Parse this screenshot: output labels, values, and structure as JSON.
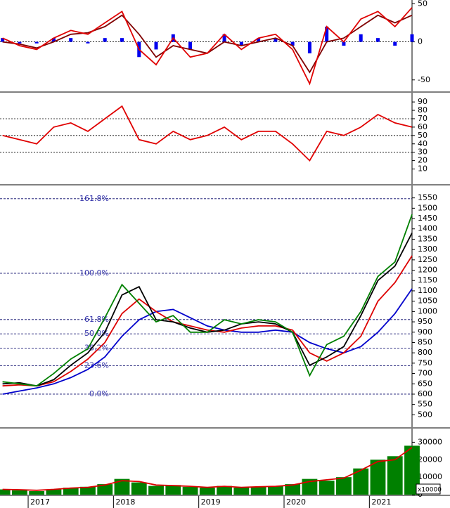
{
  "chart_data": [
    {
      "type": "line",
      "xlim": [
        2016.67,
        2021.5
      ],
      "ylim": [
        -65,
        55
      ],
      "yticks": [
        -50,
        0,
        50
      ],
      "ref_lines": [
        0
      ],
      "x": [
        2016.7,
        2016.9,
        2017.1,
        2017.3,
        2017.5,
        2017.7,
        2017.9,
        2018.1,
        2018.3,
        2018.5,
        2018.7,
        2018.9,
        2019.1,
        2019.3,
        2019.5,
        2019.7,
        2019.9,
        2020.1,
        2020.3,
        2020.5,
        2020.7,
        2020.9,
        2021.1,
        2021.3,
        2021.5
      ],
      "series": [
        {
          "kind": "bar",
          "color": "#0000ee",
          "values": [
            5,
            -2,
            -2,
            5,
            5,
            -2,
            5,
            5,
            -20,
            -10,
            10,
            -10,
            0,
            10,
            -5,
            5,
            5,
            -5,
            -15,
            20,
            -5,
            10,
            5,
            -5,
            10
          ]
        },
        {
          "kind": "line",
          "color": "#800000",
          "values": [
            0,
            -3,
            -8,
            0,
            10,
            12,
            20,
            35,
            10,
            -20,
            -5,
            -10,
            -15,
            0,
            -5,
            0,
            5,
            -5,
            -40,
            0,
            5,
            20,
            35,
            25,
            35
          ]
        },
        {
          "kind": "line",
          "color": "#e00000",
          "values": [
            5,
            -5,
            -10,
            5,
            15,
            10,
            25,
            40,
            -10,
            -30,
            5,
            -20,
            -15,
            10,
            -10,
            5,
            10,
            -10,
            -55,
            20,
            0,
            30,
            40,
            20,
            45
          ]
        }
      ]
    },
    {
      "type": "line",
      "xlim": [
        2016.67,
        2021.5
      ],
      "ylim": [
        -8,
        101
      ],
      "yticks": [
        10,
        20,
        30,
        40,
        50,
        60,
        70,
        80,
        90
      ],
      "ref_lines": [
        30,
        50,
        70
      ],
      "x": [
        2016.7,
        2016.9,
        2017.1,
        2017.3,
        2017.5,
        2017.7,
        2017.9,
        2018.1,
        2018.3,
        2018.5,
        2018.7,
        2018.9,
        2019.1,
        2019.3,
        2019.5,
        2019.7,
        2019.9,
        2020.1,
        2020.3,
        2020.5,
        2020.7,
        2020.9,
        2021.1,
        2021.3,
        2021.5
      ],
      "series": [
        {
          "kind": "line",
          "color": "#e00000",
          "values": [
            50,
            45,
            40,
            60,
            65,
            55,
            70,
            85,
            45,
            40,
            55,
            45,
            50,
            60,
            45,
            55,
            55,
            40,
            20,
            55,
            50,
            60,
            75,
            65,
            60
          ]
        }
      ]
    },
    {
      "type": "line",
      "xlim": [
        2016.67,
        2021.5
      ],
      "ylim": [
        440,
        1610
      ],
      "yticks": [
        500,
        550,
        600,
        650,
        700,
        750,
        800,
        850,
        900,
        950,
        1000,
        1050,
        1100,
        1150,
        1200,
        1250,
        1300,
        1350,
        1400,
        1450,
        1500,
        1550
      ],
      "fib_levels": [
        {
          "value": 1546,
          "label": "161.8%"
        },
        {
          "value": 1185,
          "label": "100.0%"
        },
        {
          "value": 961,
          "label": "61.8%"
        },
        {
          "value": 892,
          "label": "50.0%"
        },
        {
          "value": 823,
          "label": "38.2%"
        },
        {
          "value": 738,
          "label": "23.6%"
        },
        {
          "value": 600,
          "label": "0.0%"
        }
      ],
      "x": [
        2016.7,
        2016.9,
        2017.1,
        2017.3,
        2017.5,
        2017.7,
        2017.9,
        2018.1,
        2018.3,
        2018.5,
        2018.7,
        2018.9,
        2019.1,
        2019.3,
        2019.5,
        2019.7,
        2019.9,
        2020.1,
        2020.3,
        2020.5,
        2020.7,
        2020.9,
        2021.1,
        2021.3,
        2021.5
      ],
      "series": [
        {
          "kind": "line",
          "color": "#0000cc",
          "values": [
            600,
            615,
            630,
            650,
            680,
            720,
            780,
            880,
            960,
            1000,
            1010,
            970,
            930,
            910,
            900,
            900,
            910,
            900,
            850,
            820,
            800,
            830,
            900,
            990,
            1110
          ]
        },
        {
          "kind": "line",
          "color": "#dd0000",
          "values": [
            640,
            645,
            640,
            660,
            710,
            770,
            850,
            990,
            1060,
            1000,
            950,
            930,
            910,
            900,
            920,
            930,
            930,
            910,
            800,
            760,
            800,
            880,
            1050,
            1140,
            1270
          ]
        },
        {
          "kind": "line",
          "color": "#000000",
          "values": [
            650,
            655,
            640,
            670,
            740,
            800,
            900,
            1080,
            1120,
            960,
            950,
            920,
            900,
            910,
            940,
            950,
            940,
            900,
            740,
            780,
            830,
            980,
            1150,
            1220,
            1380
          ]
        },
        {
          "kind": "line",
          "color": "#008000",
          "values": [
            660,
            650,
            640,
            700,
            770,
            820,
            970,
            1130,
            1040,
            950,
            980,
            900,
            900,
            960,
            940,
            960,
            950,
            900,
            690,
            840,
            880,
            1000,
            1170,
            1240,
            1470
          ]
        }
      ]
    },
    {
      "type": "bar",
      "xlim": [
        2016.67,
        2021.5
      ],
      "ylim": [
        0,
        37800
      ],
      "yticks": [
        0,
        10000,
        20000,
        30000
      ],
      "y_unit_label": "x10000",
      "xticks": [
        2017,
        2018,
        2019,
        2020,
        2021
      ],
      "x": [
        2016.7,
        2016.9,
        2017.1,
        2017.3,
        2017.5,
        2017.7,
        2017.9,
        2018.1,
        2018.3,
        2018.5,
        2018.7,
        2018.9,
        2019.1,
        2019.3,
        2019.5,
        2019.7,
        2019.9,
        2020.1,
        2020.3,
        2020.5,
        2020.7,
        2020.9,
        2021.1,
        2021.3,
        2021.5
      ],
      "series": [
        {
          "kind": "bar",
          "color": "#008000",
          "values": [
            3000,
            2500,
            2000,
            3000,
            4000,
            4500,
            6000,
            9000,
            7000,
            5000,
            5500,
            4500,
            4000,
            5000,
            4000,
            4500,
            5000,
            6000,
            9000,
            8000,
            10000,
            15000,
            20000,
            22000,
            28000
          ]
        },
        {
          "kind": "line",
          "color": "#dd0000",
          "values": [
            3000,
            2800,
            2500,
            3000,
            3800,
            4200,
            5500,
            8000,
            7500,
            5500,
            5200,
            4800,
            4200,
            4800,
            4200,
            4500,
            4800,
            5500,
            7500,
            8500,
            9500,
            14000,
            19000,
            20000,
            27000
          ]
        }
      ]
    }
  ]
}
